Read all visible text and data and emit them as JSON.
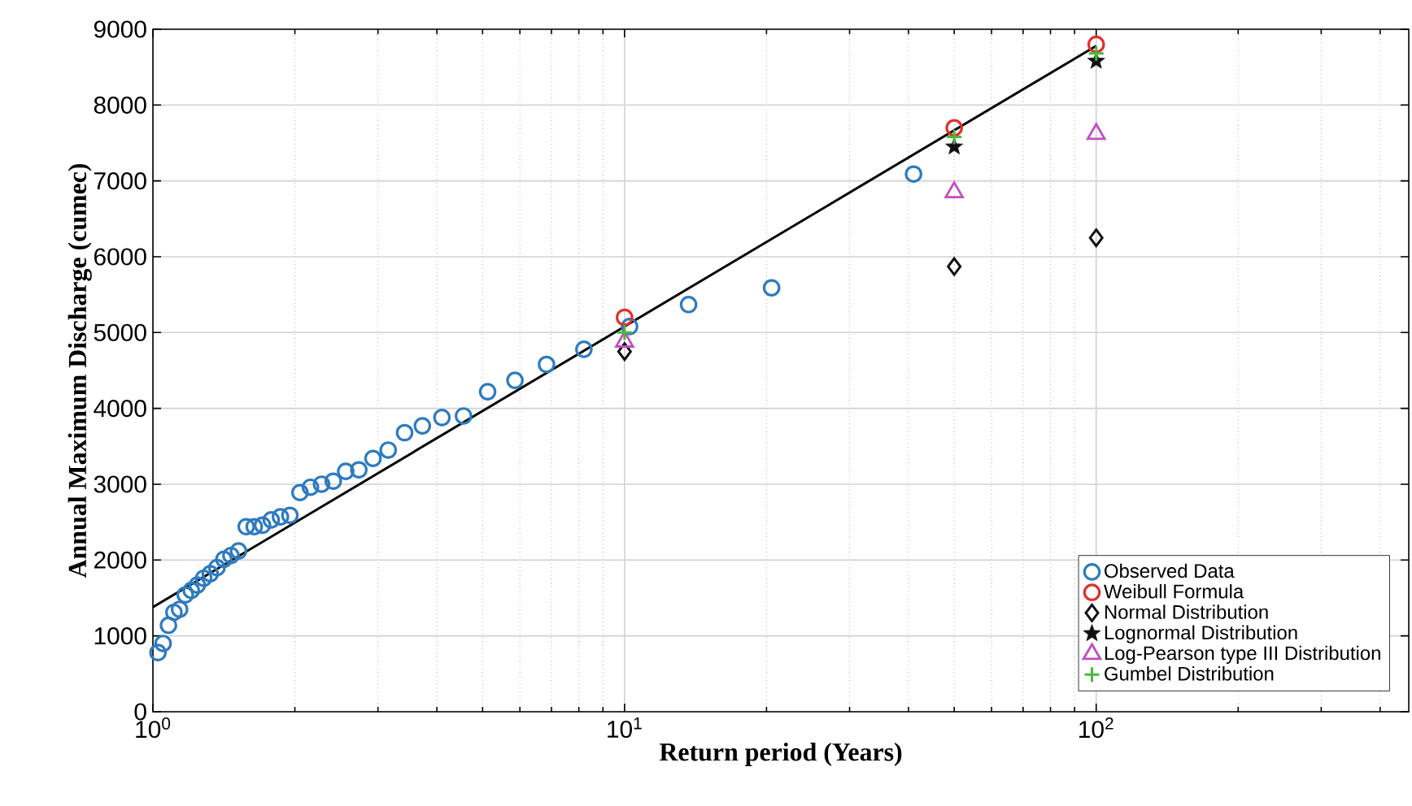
{
  "chart_data": {
    "type": "scatter",
    "xlabel": "Return period (Years)",
    "ylabel": "Annual Maximum Discharge (cumec)",
    "log": "x",
    "xlim": [
      1,
      460
    ],
    "xticks": [
      {
        "value": 1,
        "label": "10$^{0}$"
      },
      {
        "value": 10,
        "label": "10$^{1}$"
      },
      {
        "value": 100,
        "label": "10$^{2}$"
      }
    ],
    "ylim": [
      0,
      9000
    ],
    "yticks": [
      0,
      1000,
      2000,
      3000,
      4000,
      5000,
      6000,
      7000,
      8000,
      9000
    ],
    "grid": true,
    "legend": "bottom right",
    "series": [
      {
        "name": "Observed Data",
        "color": "#2e7bbf",
        "marker": "circle",
        "x": [
          1.025,
          1.051,
          1.079,
          1.108,
          1.139,
          1.171,
          1.206,
          1.242,
          1.281,
          1.323,
          1.367,
          1.414,
          1.464,
          1.519,
          1.577,
          1.64,
          1.708,
          1.782,
          1.864,
          1.952,
          2.05,
          2.158,
          2.278,
          2.412,
          2.563,
          2.733,
          2.929,
          3.154,
          3.417,
          3.727,
          4.1,
          4.556,
          5.125,
          5.857,
          6.833,
          8.2,
          10.25,
          13.67,
          20.5,
          41
        ],
        "values": [
          780,
          900,
          1140,
          1310,
          1350,
          1540,
          1600,
          1670,
          1760,
          1820,
          1900,
          2010,
          2060,
          2120,
          2440,
          2440,
          2460,
          2530,
          2570,
          2590,
          2890,
          2960,
          3000,
          3040,
          3170,
          3190,
          3340,
          3450,
          3680,
          3770,
          3880,
          3900,
          4220,
          4370,
          4580,
          4780,
          5080,
          5370,
          5590,
          7090
        ]
      },
      {
        "name": "Weibull Formula",
        "color": "#e0302a",
        "marker": "circle",
        "x": [
          10,
          50,
          100
        ],
        "values": [
          5200,
          7700,
          8800
        ]
      },
      {
        "name": "Normal Distribution",
        "color": "#111111",
        "marker": "diamond",
        "x": [
          10,
          50,
          100
        ],
        "values": [
          4750,
          5870,
          6250
        ]
      },
      {
        "name": "Lognormal Distribution",
        "color": "#111111",
        "marker": "star",
        "x": [
          50,
          100
        ],
        "values": [
          7450,
          8580
        ]
      },
      {
        "name": "Log-Pearson type III Distribution",
        "color": "#c04fc0",
        "marker": "triangle",
        "x": [
          10,
          50,
          100
        ],
        "values": [
          4880,
          6850,
          7620
        ]
      },
      {
        "name": "Gumbel Distribution",
        "color": "#4cb83c",
        "marker": "cross",
        "x": [
          10,
          50,
          100
        ],
        "values": [
          5000,
          7580,
          8680
        ]
      },
      {
        "type": "line",
        "color": "#000000",
        "marker": "none",
        "line_style": "solid",
        "x": [
          1,
          100
        ],
        "values": [
          1380,
          8780
        ]
      }
    ]
  }
}
